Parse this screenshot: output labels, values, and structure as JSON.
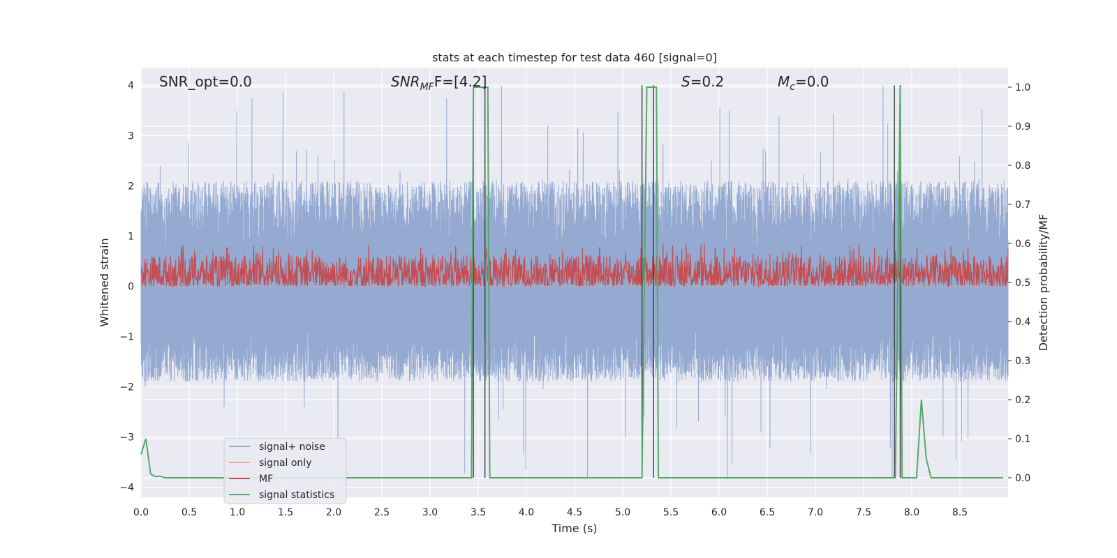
{
  "chart_data": {
    "type": "line",
    "title": "stats at each timestep for test data 460 [signal=0]",
    "xlabel": "Time (s)",
    "ylabel_left": "Whitened strain",
    "ylabel_right": "Detection probability/MF",
    "xlim": [
      0.0,
      9.0
    ],
    "ylim_left": [
      -4.2,
      4.35
    ],
    "ylim_right": [
      -0.05,
      1.05
    ],
    "x_ticks": [
      "0.0",
      "0.5",
      "1.0",
      "1.5",
      "2.0",
      "2.5",
      "3.0",
      "3.5",
      "4.0",
      "4.5",
      "5.0",
      "5.5",
      "6.0",
      "6.5",
      "7.0",
      "7.5",
      "8.0",
      "8.5"
    ],
    "y_ticks_left": [
      "4",
      "3",
      "2",
      "1",
      "0",
      "−1",
      "−2",
      "−3",
      "−4"
    ],
    "y_ticks_right": [
      "1.0",
      "0.9",
      "0.8",
      "0.7",
      "0.6",
      "0.5",
      "0.4",
      "0.3",
      "0.2",
      "0.1",
      "0.0"
    ],
    "grid": true,
    "legend_position": "lower-left",
    "annotations": {
      "snr_opt": "SNR_opt=0.0",
      "snr_mf_main": "SNR",
      "snr_mf_sub": "MF",
      "snr_mf_rest": "F=[4.2]",
      "s_italic": "S",
      "s_rest": "=0.2",
      "mc_main": "M",
      "mc_sub": "c",
      "mc_rest": "=0.0"
    },
    "series": [
      {
        "name": "signal+ noise",
        "color": "#8fa6cf",
        "axis": "left",
        "kind": "noise",
        "envelope": {
          "typical_max": 2.1,
          "typical_min": -1.9,
          "peak_max": 4.0,
          "peak_min": -3.85
        }
      },
      {
        "name": "signal only",
        "color": "#e8a98f",
        "axis": "left",
        "kind": "flat",
        "value": 0.0
      },
      {
        "name": "MF",
        "color": "#c44e52",
        "axis": "right",
        "kind": "noise",
        "envelope": {
          "base": 0.52,
          "typical_max": 0.57,
          "typical_min": 0.49,
          "peak_max": 0.6,
          "peak_min": 0.49
        }
      },
      {
        "name": "signal statistics",
        "color": "#55a868",
        "axis": "right",
        "kind": "line",
        "x": [
          0.0,
          0.05,
          0.1,
          0.15,
          0.2,
          0.25,
          0.3,
          3.43,
          3.45,
          3.5,
          3.55,
          3.6,
          3.62,
          5.2,
          5.25,
          5.3,
          5.35,
          5.37,
          7.83,
          7.88,
          7.9,
          7.95,
          8.05,
          8.1,
          8.15,
          8.2,
          8.95
        ],
        "y": [
          0.06,
          0.1,
          0.01,
          0.003,
          0.004,
          0.0,
          0.0,
          0.0,
          1.0,
          1.0,
          1.0,
          1.0,
          0.0,
          0.0,
          1.0,
          1.0,
          1.0,
          0.0,
          0.0,
          1.0,
          0.0,
          0.0,
          0.0,
          0.2,
          0.05,
          0.0,
          0.0
        ]
      }
    ],
    "vertical_lines": [
      3.45,
      3.57,
      5.2,
      5.32,
      7.82,
      7.88
    ]
  }
}
